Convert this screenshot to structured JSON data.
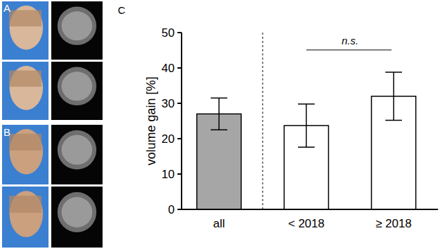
{
  "panels": [
    {
      "label": "A"
    },
    {
      "label": "B"
    },
    {
      "label": "C"
    }
  ],
  "chart_data": {
    "type": "bar",
    "y_label": "volume gain [%]",
    "categories": [
      "all",
      "< 2018",
      "≥ 2018"
    ],
    "values": [
      27,
      23.7,
      32
    ],
    "errors": [
      4.5,
      6.1,
      6.8
    ],
    "colors": [
      "#a6a6a6",
      "#ffffff",
      "#ffffff"
    ],
    "ylim": [
      0,
      50
    ],
    "yticks": [
      0,
      10,
      20,
      30,
      40,
      50
    ],
    "grid": false,
    "annotation": "n.s."
  }
}
